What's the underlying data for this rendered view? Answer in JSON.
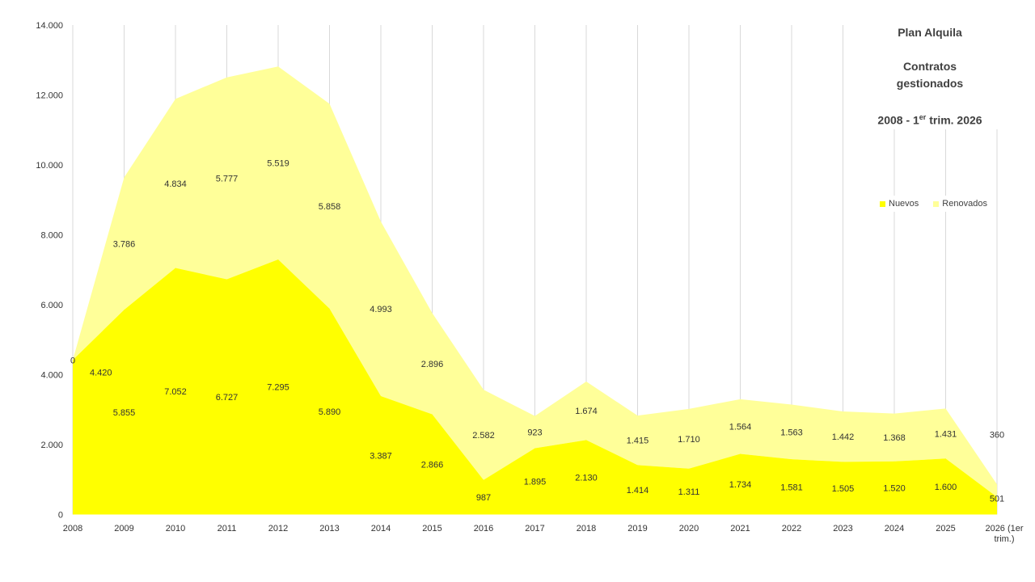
{
  "title": {
    "line1": "Plan Alquila",
    "line2": "Contratos",
    "line3": "gestionados",
    "line4_pre": "2008 - 1",
    "line4_sup": "er",
    "line4_post": " trim. 2026"
  },
  "colors": {
    "nuevos": "#ffff00",
    "renovados": "#ffff99",
    "grid": "#d9d9d9",
    "text": "#333333"
  },
  "chart_data": {
    "type": "area",
    "stacked": true,
    "categories": [
      "2008",
      "2009",
      "2010",
      "2011",
      "2012",
      "2013",
      "2014",
      "2015",
      "2016",
      "2017",
      "2018",
      "2019",
      "2020",
      "2021",
      "2022",
      "2023",
      "2024",
      "2025",
      "2026 (1er trim.)"
    ],
    "series": [
      {
        "name": "Nuevos",
        "values": [
          4420,
          5855,
          7052,
          6727,
          7295,
          5890,
          3387,
          2866,
          987,
          1895,
          2130,
          1414,
          1311,
          1734,
          1581,
          1505,
          1520,
          1600,
          501
        ],
        "labels": [
          "4.420",
          "5.855",
          "7.052",
          "6.727",
          "7.295",
          "5.890",
          "3.387",
          "2.866",
          "987",
          "1.895",
          "2.130",
          "1.414",
          "1.311",
          "1.734",
          "1.581",
          "1.505",
          "1.520",
          "1.600",
          "501"
        ]
      },
      {
        "name": "Renovados",
        "values": [
          0,
          3786,
          4834,
          5777,
          5519,
          5858,
          4993,
          2896,
          2582,
          923,
          1674,
          1415,
          1710,
          1564,
          1563,
          1442,
          1368,
          1431,
          360
        ],
        "labels": [
          "0",
          "3.786",
          "4.834",
          "5.777",
          "5.519",
          "5.858",
          "4.993",
          "2.896",
          "2.582",
          "923",
          "1.674",
          "1.415",
          "1.710",
          "1.564",
          "1.563",
          "1.442",
          "1.368",
          "1.431",
          "360"
        ]
      }
    ],
    "y_ticks": [
      "0",
      "2.000",
      "4.000",
      "6.000",
      "8.000",
      "10.000",
      "12.000",
      "14.000"
    ],
    "ylim": [
      0,
      14000
    ],
    "grid": true,
    "legend": "right"
  }
}
